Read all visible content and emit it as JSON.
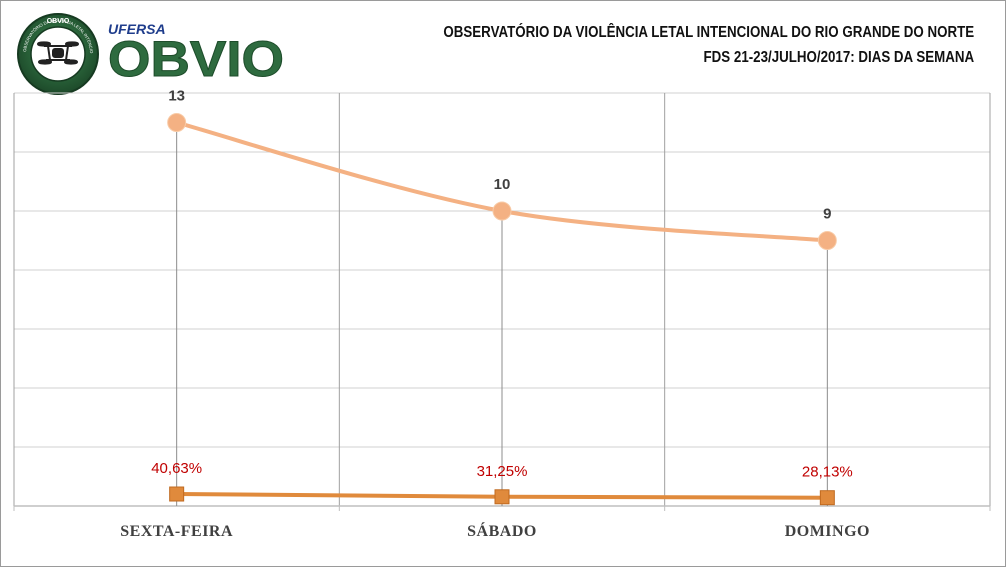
{
  "header": {
    "title_line1": "OBSERVATÓRIO DA VIOLÊNCIA LETAL INTENCIONAL DO RIO GRANDE DO NORTE",
    "title_line2": "FDS 21-23/JULHO/2017:  DIAS DA SEMANA"
  },
  "logo": {
    "seal_top_text": "OBVIO",
    "seal_ring_text": "OBSERVATÓRIO DA VIOLÊNCIA LETAL INTENCIONAL",
    "ufersa_text": "UFERSA",
    "wordmark": "OBVIO",
    "accent_color": "#2e6b3f",
    "ufersa_color": "#1f3d8c"
  },
  "chart_data": {
    "type": "line",
    "categories": [
      "SEXTA-FEIRA",
      "SÁBADO",
      "DOMINGO"
    ],
    "series": [
      {
        "values": [
          13,
          10,
          9
        ],
        "labels": [
          "13",
          "10",
          "9"
        ],
        "color": "#f4b183",
        "marker": "circle"
      },
      {
        "values": [
          0.4063,
          0.3125,
          0.2813
        ],
        "labels": [
          "40,63%",
          "31,25%",
          "28,13%"
        ],
        "color": "#e08a3c",
        "marker": "square"
      }
    ],
    "ylim": [
      0,
      14
    ],
    "grid": true,
    "label_colors": {
      "counts": "#404040",
      "percents": "#c00000"
    }
  }
}
